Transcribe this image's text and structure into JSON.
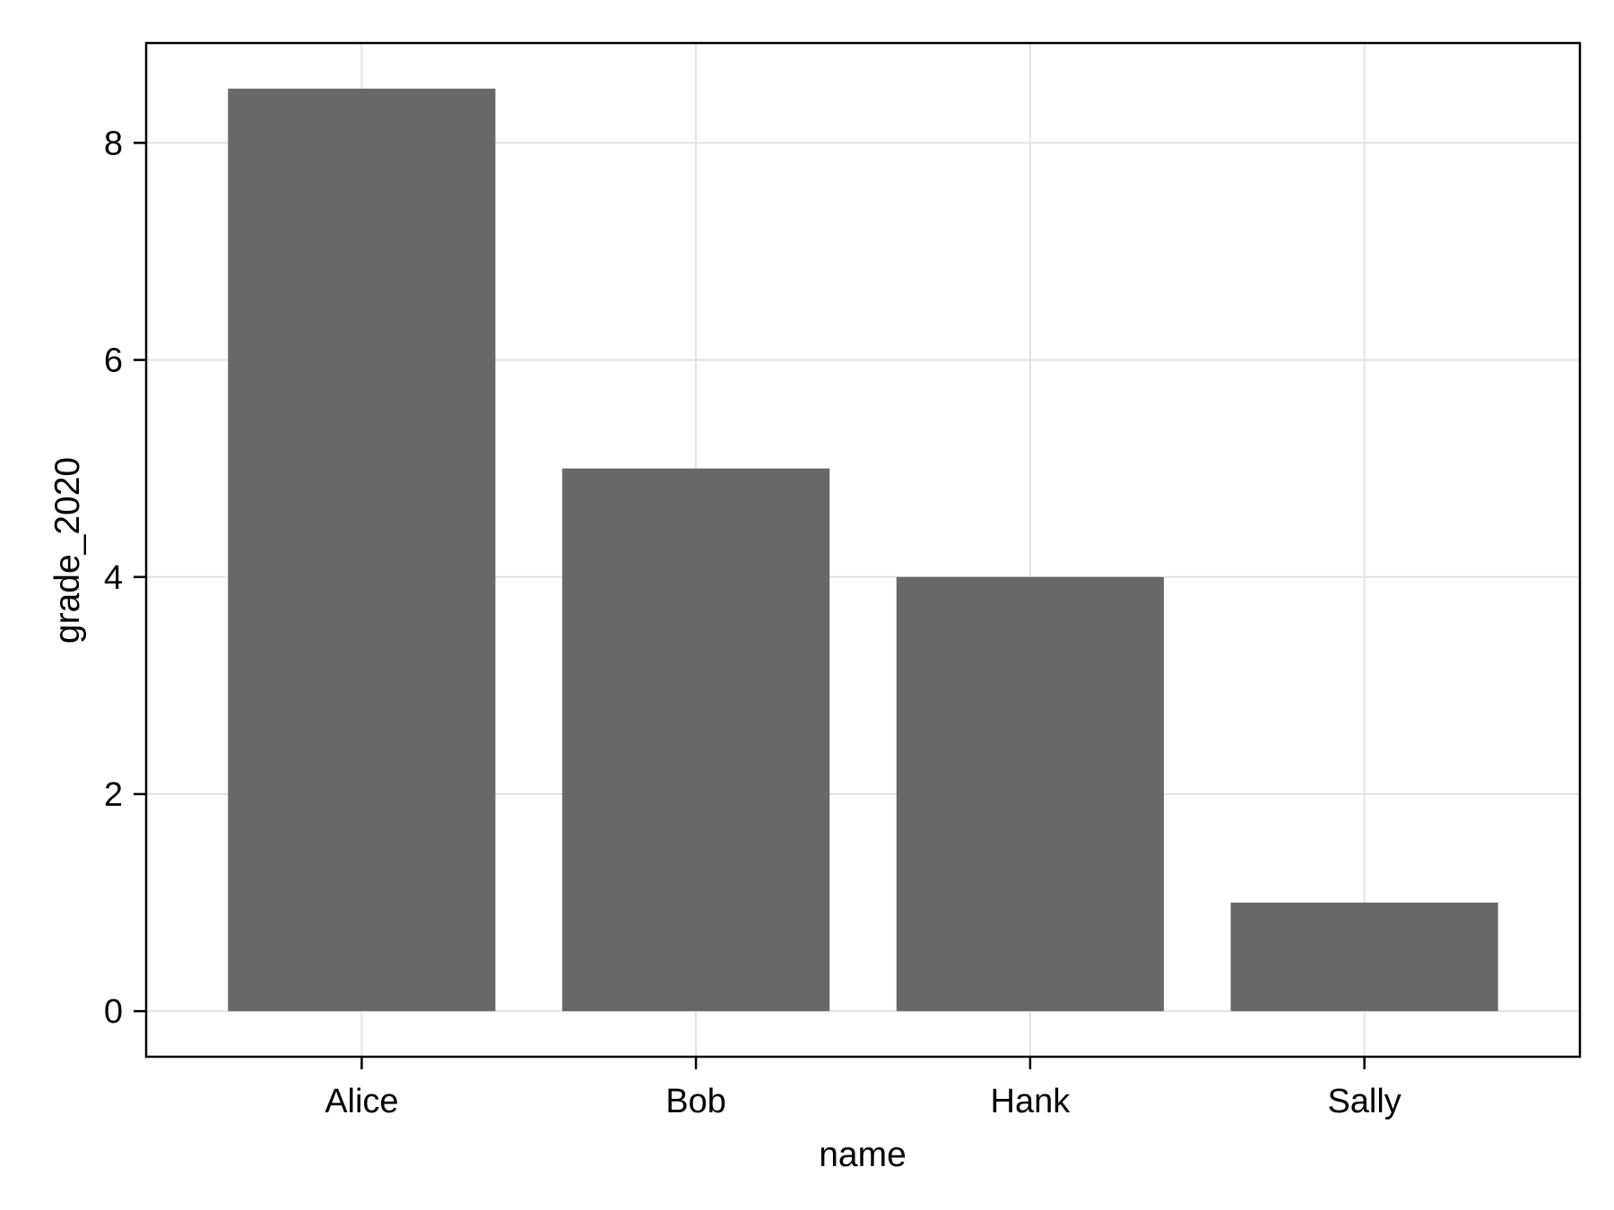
{
  "chart_data": {
    "type": "bar",
    "title": "",
    "xlabel": "name",
    "ylabel": "grade_2020",
    "categories": [
      "Alice",
      "Bob",
      "Hank",
      "Sally"
    ],
    "values": [
      8.5,
      5,
      4,
      1
    ],
    "ylim": [
      -0.42,
      8.92
    ],
    "yticks": [
      0,
      2,
      4,
      6,
      8
    ],
    "grid": true,
    "legend": "none",
    "colors": {
      "bar": "#686868",
      "grid": "#e3e3e3",
      "axis": "#000000",
      "background": "#ffffff"
    }
  }
}
